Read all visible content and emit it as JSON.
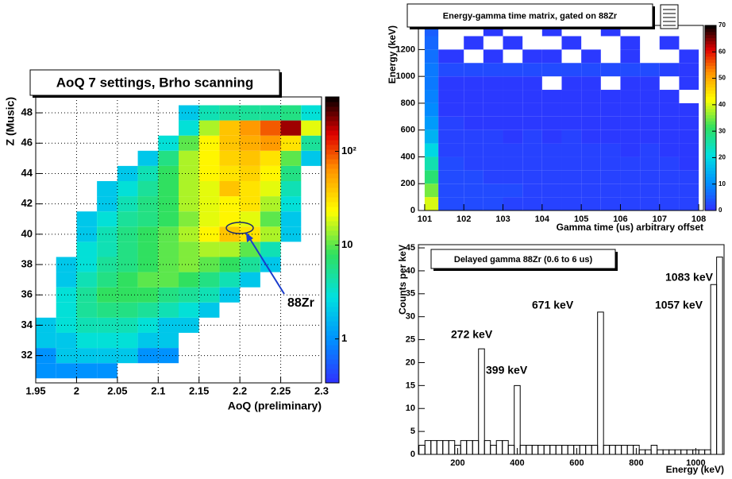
{
  "chart_data": [
    {
      "type": "heatmap",
      "title": "AoQ 7 settings, Brho scanning",
      "x_label": "AoQ (preliminary)",
      "y_label": "Z (Music)",
      "annotations": [
        "88Zr"
      ],
      "xbins": [
        1.95,
        1.975,
        2.0,
        2.025,
        2.05,
        2.075,
        2.1,
        2.125,
        2.15,
        2.175,
        2.2,
        2.225,
        2.25,
        2.275,
        2.3
      ],
      "ybins": [
        30.5,
        31.5,
        32.5,
        33.5,
        34.5,
        35.5,
        36.5,
        37.5,
        38.5,
        39.5,
        40.5,
        41.5,
        42.5,
        43.5,
        44.5,
        45.5,
        46.5,
        47.5,
        48.5
      ],
      "z": [
        [
          1,
          1,
          1,
          1,
          0,
          0,
          0,
          0,
          0,
          0,
          0,
          0,
          0,
          0
        ],
        [
          1,
          2,
          2,
          2,
          2,
          1,
          1,
          0,
          0,
          0,
          0,
          0,
          0,
          0
        ],
        [
          2,
          2,
          3,
          3,
          3,
          2,
          2,
          0,
          0,
          0,
          0,
          0,
          0,
          0
        ],
        [
          2,
          3,
          4,
          4,
          4,
          3,
          2,
          2,
          0,
          0,
          0,
          0,
          0,
          0
        ],
        [
          0,
          3,
          5,
          6,
          6,
          5,
          4,
          3,
          2,
          0,
          0,
          0,
          0,
          0
        ],
        [
          0,
          3,
          5,
          8,
          8,
          8,
          6,
          5,
          4,
          2,
          0,
          0,
          0,
          0
        ],
        [
          0,
          2,
          4,
          6,
          8,
          10,
          10,
          8,
          6,
          4,
          2,
          0,
          0,
          0
        ],
        [
          0,
          2,
          3,
          5,
          6,
          8,
          10,
          12,
          10,
          8,
          5,
          2,
          0,
          0
        ],
        [
          0,
          0,
          3,
          4,
          6,
          8,
          10,
          12,
          15,
          15,
          10,
          4,
          0,
          0
        ],
        [
          0,
          0,
          2,
          4,
          6,
          8,
          10,
          15,
          25,
          40,
          30,
          15,
          2,
          0
        ],
        [
          0,
          0,
          2,
          3,
          5,
          6,
          8,
          12,
          20,
          25,
          20,
          10,
          2,
          0
        ],
        [
          0,
          0,
          0,
          2,
          4,
          6,
          8,
          15,
          20,
          25,
          30,
          15,
          3,
          0
        ],
        [
          0,
          0,
          0,
          2,
          3,
          5,
          8,
          15,
          20,
          40,
          30,
          20,
          4,
          0
        ],
        [
          0,
          0,
          0,
          0,
          2,
          4,
          8,
          15,
          25,
          30,
          35,
          25,
          6,
          0
        ],
        [
          0,
          0,
          0,
          0,
          0,
          2,
          6,
          15,
          25,
          35,
          40,
          30,
          10,
          2
        ],
        [
          0,
          0,
          0,
          0,
          0,
          0,
          3,
          10,
          25,
          40,
          50,
          60,
          30,
          5
        ],
        [
          0,
          0,
          0,
          0,
          0,
          0,
          0,
          3,
          15,
          40,
          60,
          90,
          200,
          20
        ],
        [
          0,
          0,
          0,
          0,
          0,
          0,
          0,
          2,
          4,
          5,
          5,
          5,
          6,
          3
        ]
      ],
      "xlim": [
        1.95,
        2.3
      ],
      "ylim": [
        30.2,
        49.05
      ],
      "xticks": [
        1.95,
        2,
        2.05,
        2.1,
        2.15,
        2.2,
        2.25,
        2.3
      ],
      "yticks": [
        32,
        34,
        36,
        38,
        40,
        42,
        44,
        46,
        48
      ],
      "zlim": [
        0.34,
        380
      ],
      "zticks": [
        1,
        10,
        {
          "value": 100,
          "label": "10²"
        }
      ],
      "log_z": true,
      "grid": true
    },
    {
      "type": "heatmap",
      "title": "Energy-gamma time matrix, gated on 88Zr",
      "x_label": "Gamma time (us) arbitrary offset",
      "y_label": "Energy (keV)",
      "xbins": [
        101,
        101.35,
        102,
        102.5,
        103,
        103.5,
        104,
        104.5,
        105,
        105.5,
        106,
        106.5,
        107,
        107.5,
        108
      ],
      "ybins": [
        0,
        100,
        200,
        300,
        400,
        500,
        600,
        700,
        800,
        900,
        1000,
        1100,
        1200,
        1300,
        1400
      ],
      "z": [
        [
          40,
          3,
          3,
          3,
          2,
          2,
          2,
          2,
          2,
          2,
          2,
          2,
          2,
          2
        ],
        [
          35,
          3,
          3,
          3,
          3,
          2,
          2,
          2,
          2,
          2,
          2,
          2,
          2,
          2
        ],
        [
          30,
          3,
          3,
          2,
          2,
          2,
          2,
          2,
          2,
          2,
          2,
          2,
          2,
          2
        ],
        [
          25,
          3,
          2,
          2,
          2,
          2,
          2,
          2,
          2,
          2,
          2,
          2,
          2,
          1
        ],
        [
          20,
          2,
          2,
          2,
          2,
          2,
          2,
          2,
          2,
          2,
          1,
          2,
          1,
          1
        ],
        [
          15,
          2,
          2,
          2,
          1,
          2,
          1,
          2,
          1,
          1,
          1,
          1,
          1,
          1
        ],
        [
          12,
          2,
          1,
          1,
          1,
          1,
          1,
          1,
          1,
          1,
          1,
          1,
          1,
          1
        ],
        [
          10,
          1,
          1,
          1,
          1,
          1,
          1,
          1,
          1,
          1,
          1,
          1,
          1,
          1
        ],
        [
          9,
          1,
          1,
          1,
          1,
          1,
          1,
          1,
          1,
          1,
          1,
          1,
          1,
          0
        ],
        [
          8,
          1,
          1,
          1,
          1,
          1,
          0,
          1,
          1,
          0,
          1,
          1,
          0,
          1
        ],
        [
          8,
          3,
          3,
          3,
          3,
          3,
          3,
          3,
          3,
          3,
          3,
          3,
          2,
          1
        ],
        [
          7,
          1,
          0,
          1,
          0,
          1,
          1,
          0,
          1,
          0,
          1,
          0,
          0,
          1
        ],
        [
          6,
          0,
          1,
          0,
          1,
          0,
          0,
          1,
          0,
          0,
          1,
          0,
          1,
          0
        ],
        [
          5,
          0,
          0,
          1,
          0,
          0,
          1,
          0,
          0,
          1,
          0,
          0,
          0,
          0
        ]
      ],
      "xlim": [
        100.84,
        108.12
      ],
      "ylim": [
        0,
        1380
      ],
      "xticks": [
        101,
        102,
        103,
        104,
        105,
        106,
        107,
        108
      ],
      "yticks": [
        0,
        200,
        400,
        600,
        800,
        1000,
        1200
      ],
      "zlim": [
        0,
        70
      ],
      "zticks": [
        0,
        10,
        20,
        30,
        40,
        50,
        60,
        70
      ],
      "log_z": false,
      "grid": false
    },
    {
      "type": "histogram",
      "title": "Delayed gamma 88Zr (0.6 to 6 us)",
      "x_label": "Energy (keV)",
      "y_label": "Counts per keV",
      "annotations": [
        "272 keV",
        "399 keV",
        "671 keV",
        "1057 keV",
        "1083 keV"
      ],
      "bins": [
        70,
        90,
        110,
        130,
        150,
        170,
        190,
        210,
        230,
        250,
        270,
        290,
        310,
        330,
        350,
        370,
        390,
        410,
        430,
        450,
        470,
        490,
        510,
        530,
        550,
        570,
        590,
        610,
        630,
        650,
        670,
        690,
        710,
        730,
        750,
        770,
        790,
        810,
        830,
        850,
        870,
        890,
        910,
        930,
        950,
        970,
        990,
        1010,
        1030,
        1050,
        1070,
        1090
      ],
      "values": [
        2,
        3,
        3,
        3,
        3,
        3,
        2,
        3,
        3,
        3,
        23,
        3,
        2,
        3,
        3,
        2,
        15,
        2,
        2,
        2,
        2,
        2,
        2,
        2,
        2,
        2,
        2,
        2,
        2,
        2,
        31,
        2,
        2,
        2,
        2,
        2,
        2,
        1,
        1,
        2,
        1,
        1,
        1,
        1,
        1,
        1,
        1,
        1,
        1,
        37,
        43
      ],
      "color": "#000000",
      "xlim": [
        68,
        1095
      ],
      "ylim": [
        0,
        45.7
      ],
      "xticks": [
        200,
        400,
        600,
        800,
        1000
      ],
      "yticks": [
        0,
        5,
        10,
        15,
        20,
        25,
        30,
        35,
        40,
        45
      ],
      "grid": false
    }
  ]
}
